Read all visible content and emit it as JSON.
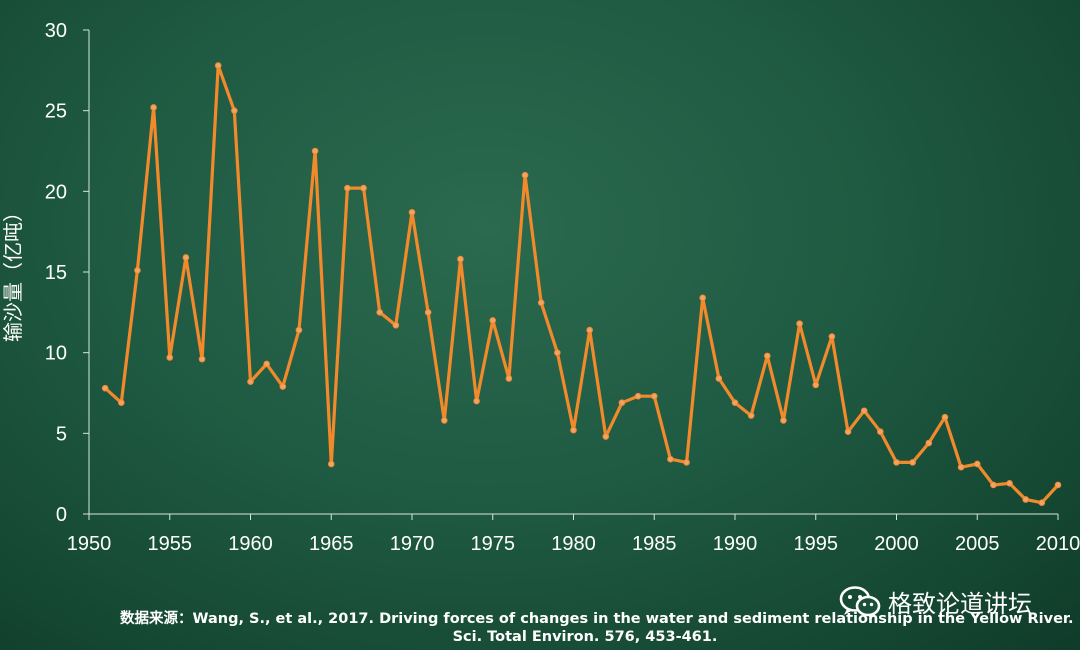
{
  "chart_data": {
    "type": "line",
    "title": "",
    "xlabel": "",
    "ylabel": "输沙量（亿吨）",
    "xlim": [
      1950,
      2010
    ],
    "ylim": [
      0,
      30
    ],
    "xticks": [
      1950,
      1955,
      1960,
      1965,
      1970,
      1975,
      1980,
      1985,
      1990,
      1995,
      2000,
      2005,
      2010
    ],
    "yticks": [
      0,
      5,
      10,
      15,
      20,
      25,
      30
    ],
    "grid": false,
    "line_color": "#f28a2c",
    "series": [
      {
        "x": [
          1951,
          1952,
          1953,
          1954,
          1955,
          1956,
          1957,
          1958,
          1959,
          1960,
          1961,
          1962,
          1963,
          1964,
          1965,
          1966,
          1967,
          1968,
          1969,
          1970,
          1971,
          1972,
          1973,
          1974,
          1975,
          1976,
          1977,
          1978,
          1979,
          1980,
          1981,
          1982,
          1983,
          1984,
          1985,
          1986,
          1987,
          1988,
          1989,
          1990,
          1991,
          1992,
          1993,
          1994,
          1995,
          1996,
          1997,
          1998,
          1999,
          2000,
          2001,
          2002,
          2003,
          2004,
          2005,
          2006,
          2007,
          2008,
          2009,
          2010
        ],
        "values": [
          7.8,
          6.9,
          15.1,
          25.2,
          9.7,
          15.9,
          9.6,
          27.8,
          25.0,
          8.2,
          9.3,
          7.9,
          11.4,
          22.5,
          3.1,
          20.2,
          20.2,
          12.5,
          11.7,
          18.7,
          12.5,
          5.8,
          15.8,
          7.0,
          12.0,
          8.4,
          21.0,
          13.1,
          10.0,
          5.2,
          11.4,
          4.8,
          6.9,
          7.3,
          7.3,
          3.4,
          3.2,
          13.4,
          8.4,
          6.9,
          6.1,
          9.8,
          5.8,
          11.8,
          8.0,
          11.0,
          5.1,
          6.4,
          5.1,
          3.2,
          3.2,
          4.4,
          6.0,
          2.9,
          3.1,
          1.8,
          1.9,
          0.9,
          0.7,
          1.8
        ]
      }
    ]
  },
  "watermark": {
    "icon": "wechat-icon",
    "text": "格致论道讲坛"
  },
  "source": {
    "line1": "数据来源：Wang, S., et al., 2017. Driving forces of changes in the water and sediment relationship in the Yellow River.",
    "line2": "Sci. Total Environ. 576, 453-461."
  }
}
